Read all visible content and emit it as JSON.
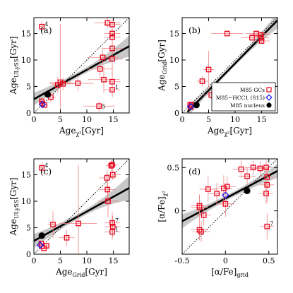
{
  "chart_data": [
    {
      "panel": "(a)",
      "type": "scatter",
      "xlabel": "Age",
      "xlabel_sub": "χ²",
      "xlabel_unit": "[Gyr]",
      "ylabel": "Age",
      "ylabel_sub": "ULySS",
      "ylabel_unit": "[Gyr]",
      "xlim": [
        0,
        18
      ],
      "ylim": [
        0,
        18
      ],
      "xticks": [
        0,
        5,
        10,
        15
      ],
      "yticks": [
        0,
        5,
        10,
        15
      ],
      "one_to_one_line": true,
      "fit": {
        "x": [
          0,
          18
        ],
        "y": [
          2.6,
          12.6
        ],
        "band_halfwidth_at_ends": [
          1.2,
          2.0
        ],
        "band_halfwidth_center": 0.5
      },
      "series": [
        {
          "name": "M85 GCs",
          "marker": "square",
          "color": "#e8001b",
          "points": [
            {
              "x": 1.5,
              "y": 16.3,
              "xerr": 0.5,
              "yerr": 1.0,
              "label": "4"
            },
            {
              "x": 1.5,
              "y": 2.2,
              "xerr": 0.4,
              "yerr": 0.6
            },
            {
              "x": 1.6,
              "y": 1.8,
              "xerr": 0.5,
              "yerr": 0.6
            },
            {
              "x": 2.0,
              "y": 1.5,
              "xerr": 0.7,
              "yerr": 0.5
            },
            {
              "x": 3.2,
              "y": 3.0,
              "xerr": 1.0,
              "yerr": 1.0
            },
            {
              "x": 4.5,
              "y": 5.3,
              "xerr": 1.0,
              "yerr": 1.5
            },
            {
              "x": 5.0,
              "y": 5.8,
              "xerr": 2.0,
              "yerr": 11.0
            },
            {
              "x": 5.5,
              "y": 5.5,
              "xerr": 2.5,
              "yerr": 1.2
            },
            {
              "x": 8.3,
              "y": 5.6,
              "xerr": 3.0,
              "yerr": 1.5
            },
            {
              "x": 12.5,
              "y": 8.3,
              "xerr": 2.5,
              "yerr": 2.0
            },
            {
              "x": 13.0,
              "y": 10.5,
              "xerr": 3.0,
              "yerr": 1.5
            },
            {
              "x": 13.2,
              "y": 6.3,
              "xerr": 3.0,
              "yerr": 2.5
            },
            {
              "x": 13.9,
              "y": 17.0,
              "xerr": 2.5,
              "yerr": 1.0
            },
            {
              "x": 14.8,
              "y": 16.7,
              "xerr": 1.5,
              "yerr": 1.0
            },
            {
              "x": 14.8,
              "y": 15.0,
              "xerr": 1.5,
              "yerr": 1.0
            },
            {
              "x": 14.8,
              "y": 14.3,
              "xerr": 1.5,
              "yerr": 1.5
            },
            {
              "x": 14.8,
              "y": 12.2,
              "xerr": 2.0,
              "yerr": 1.5
            },
            {
              "x": 14.8,
              "y": 10.2,
              "xerr": 2.0,
              "yerr": 3.0
            },
            {
              "x": 14.8,
              "y": 5.9,
              "xerr": 1.5,
              "yerr": 2.0
            },
            {
              "x": 14.8,
              "y": 4.4,
              "xerr": 1.5,
              "yerr": 1.5,
              "label": "1"
            },
            {
              "x": 12.3,
              "y": 1.3,
              "xerr": 3.0,
              "yerr": 1.0,
              "label": "5"
            }
          ]
        },
        {
          "name": "M85-HCC1 (S15)",
          "marker": "diamond",
          "color": "#2222ee",
          "points": [
            {
              "x": 1.6,
              "y": 1.6,
              "xerr": 0.2,
              "yerr": 0.2
            }
          ]
        },
        {
          "name": "M85 nucleus",
          "marker": "circle",
          "color": "#000000",
          "points": [
            {
              "x": 2.6,
              "y": 3.5,
              "xerr": 0,
              "yerr": 0
            }
          ]
        }
      ]
    },
    {
      "panel": "(b)",
      "type": "scatter",
      "xlabel": "Age",
      "xlabel_sub": "χ²",
      "xlabel_unit": "[Gyr]",
      "ylabel": "Age",
      "ylabel_sub": "Grid",
      "ylabel_unit": "[Gyr]",
      "xlim": [
        0,
        18
      ],
      "ylim": [
        0,
        18
      ],
      "xticks": [
        0,
        5,
        10,
        15
      ],
      "yticks": [
        0,
        5,
        10,
        15
      ],
      "one_to_one_line": true,
      "legend": {
        "placement": "bottom-right",
        "entries": [
          "M85 GCs",
          "M85−HCC1 (S15)",
          "M85 nucleus"
        ]
      },
      "fit": {
        "x": [
          1,
          18
        ],
        "y": [
          0.2,
          17.5
        ],
        "band_halfwidth_at_ends": [
          1.0,
          1.5
        ],
        "band_halfwidth_center": 0.4
      },
      "series": [
        {
          "name": "M85 GCs",
          "marker": "square",
          "color": "#e8001b",
          "points": [
            {
              "x": 1.5,
              "y": 1.5,
              "xerr": 0.4,
              "yerr": 0.4
            },
            {
              "x": 1.6,
              "y": 1.1,
              "xerr": 0.4,
              "yerr": 0.4
            },
            {
              "x": 1.8,
              "y": 1.6,
              "xerr": 0.4,
              "yerr": 0.5
            },
            {
              "x": 3.8,
              "y": 6.0,
              "xerr": 1.0,
              "yerr": 1.0
            },
            {
              "x": 5.0,
              "y": 8.2,
              "xerr": 1.0,
              "yerr": 3.5
            },
            {
              "x": 5.5,
              "y": 3.4,
              "xerr": 1.5,
              "yerr": 0.8
            },
            {
              "x": 8.5,
              "y": 15.0,
              "xerr": 3.0,
              "yerr": 0.5
            },
            {
              "x": 13.2,
              "y": 14.2,
              "xerr": 2.0,
              "yerr": 0.5
            },
            {
              "x": 14.0,
              "y": 15.0,
              "xerr": 2.0,
              "yerr": 0.5
            },
            {
              "x": 14.8,
              "y": 14.8,
              "xerr": 2.0,
              "yerr": 0.5
            },
            {
              "x": 14.9,
              "y": 14.2,
              "xerr": 1.5,
              "yerr": 0.5
            },
            {
              "x": 15.0,
              "y": 13.6,
              "xerr": 1.5,
              "yerr": 0.5
            }
          ]
        },
        {
          "name": "M85−HCC1 (S15)",
          "marker": "diamond",
          "color": "#2222ee",
          "points": [
            {
              "x": 1.6,
              "y": 1.2,
              "xerr": 0.2,
              "yerr": 0.2
            }
          ]
        },
        {
          "name": "M85 nucleus",
          "marker": "circle",
          "color": "#000000",
          "points": [
            {
              "x": 2.7,
              "y": 1.5,
              "xerr": 0,
              "yerr": 0
            }
          ]
        }
      ]
    },
    {
      "panel": "(c)",
      "type": "scatter",
      "xlabel": "Age",
      "xlabel_sub": "Grid",
      "xlabel_unit": "[Gyr]",
      "ylabel": "Age",
      "ylabel_sub": "ULySS",
      "ylabel_unit": "[Gyr]",
      "xlim": [
        0,
        18
      ],
      "ylim": [
        0,
        18
      ],
      "xticks": [
        0,
        5,
        10,
        15
      ],
      "yticks": [
        0,
        5,
        10,
        15
      ],
      "one_to_one_line": true,
      "fit": {
        "x": [
          0,
          18
        ],
        "y": [
          2.5,
          12.5
        ],
        "band_halfwidth_at_ends": [
          1.3,
          2.3
        ],
        "band_halfwidth_center": 0.5
      },
      "series": [
        {
          "name": "M85 GCs",
          "marker": "square",
          "color": "#e8001b",
          "points": [
            {
              "x": 1.5,
              "y": 16.3,
              "xerr": 0.5,
              "yerr": 1.0,
              "label": "4"
            },
            {
              "x": 1.4,
              "y": 2.0,
              "xerr": 0.4,
              "yerr": 0.6
            },
            {
              "x": 1.5,
              "y": 1.5,
              "xerr": 0.4,
              "yerr": 0.5
            },
            {
              "x": 1.9,
              "y": 1.1,
              "xerr": 0.5,
              "yerr": 0.5
            },
            {
              "x": 2.4,
              "y": 1.6,
              "xerr": 0.6,
              "yerr": 0.6
            },
            {
              "x": 3.6,
              "y": 5.6,
              "xerr": 1.0,
              "yerr": 2.5
            },
            {
              "x": 6.2,
              "y": 3.1,
              "xerr": 1.5,
              "yerr": 1.5
            },
            {
              "x": 8.4,
              "y": 5.8,
              "xerr": 3.5,
              "yerr": 11.0
            },
            {
              "x": 13.8,
              "y": 14.4,
              "xerr": 1.5,
              "yerr": 1.5
            },
            {
              "x": 13.9,
              "y": 12.2,
              "xerr": 1.5,
              "yerr": 2.0
            },
            {
              "x": 14.0,
              "y": 10.0,
              "xerr": 2.0,
              "yerr": 3.0
            },
            {
              "x": 14.6,
              "y": 16.7,
              "xerr": 1.0,
              "yerr": 1.0
            },
            {
              "x": 14.8,
              "y": 16.9,
              "xerr": 1.0,
              "yerr": 1.0
            },
            {
              "x": 14.9,
              "y": 15.0,
              "xerr": 1.5,
              "yerr": 1.0
            },
            {
              "x": 14.8,
              "y": 5.9,
              "xerr": 1.5,
              "yerr": 2.0,
              "label": "7"
            },
            {
              "x": 14.9,
              "y": 5.2,
              "xerr": 1.5,
              "yerr": 2.0
            },
            {
              "x": 14.8,
              "y": 4.2,
              "xerr": 1.5,
              "yerr": 1.5,
              "label": "1"
            }
          ]
        },
        {
          "name": "M85-HCC1 (S15)",
          "marker": "diamond",
          "color": "#2222ee",
          "points": [
            {
              "x": 1.2,
              "y": 1.7,
              "xerr": 0.2,
              "yerr": 0.2
            }
          ]
        },
        {
          "name": "M85 nucleus",
          "marker": "circle",
          "color": "#000000",
          "points": [
            {
              "x": 1.5,
              "y": 3.5,
              "xerr": 0,
              "yerr": 0
            }
          ]
        }
      ]
    },
    {
      "panel": "(d)",
      "type": "scatter",
      "xlabel": "[α/Fe]",
      "xlabel_sub": "grid",
      "xlabel_unit": "",
      "ylabel": "[α/Fe]",
      "ylabel_sub": "χ²",
      "ylabel_unit": "",
      "xlim": [
        -0.5,
        0.6
      ],
      "ylim": [
        -0.5,
        0.6
      ],
      "xticks": [
        -0.5,
        0.0,
        0.5
      ],
      "yticks": [
        0.0,
        0.5
      ],
      "one_to_one_line": true,
      "fit": {
        "x": [
          -0.5,
          0.6
        ],
        "y": [
          -0.12,
          0.46
        ],
        "band_halfwidth_at_ends": [
          0.08,
          0.08
        ],
        "band_halfwidth_center": 0.03
      },
      "series": [
        {
          "name": "M85 GCs",
          "marker": "square",
          "color": "#e8001b",
          "points": [
            {
              "x": -0.3,
              "y": 0.06,
              "xerr": 0.1,
              "yerr": 0.12
            },
            {
              "x": -0.3,
              "y": 0.04,
              "xerr": 0.1,
              "yerr": 0.15
            },
            {
              "x": -0.3,
              "y": -0.22,
              "xerr": 0.1,
              "yerr": 0.12
            },
            {
              "x": -0.28,
              "y": -0.24,
              "xerr": 0.1,
              "yerr": 0.12
            },
            {
              "x": -0.25,
              "y": -0.05,
              "xerr": 0.08,
              "yerr": 0.12
            },
            {
              "x": -0.2,
              "y": 0.25,
              "xerr": 0.1,
              "yerr": 0.15
            },
            {
              "x": -0.1,
              "y": 0.2,
              "xerr": 0.1,
              "yerr": 0.12
            },
            {
              "x": -0.02,
              "y": 0.26,
              "xerr": 0.1,
              "yerr": 0.15
            },
            {
              "x": 0.0,
              "y": 0.08,
              "xerr": 0.1,
              "yerr": 0.15
            },
            {
              "x": 0.02,
              "y": 0.28,
              "xerr": 0.1,
              "yerr": 0.12
            },
            {
              "x": 0.18,
              "y": 0.48,
              "xerr": 0.1,
              "yerr": 0.1
            },
            {
              "x": 0.25,
              "y": 0.4,
              "xerr": 0.1,
              "yerr": 0.1
            },
            {
              "x": 0.32,
              "y": 0.5,
              "xerr": 0.1,
              "yerr": 0.08
            },
            {
              "x": 0.4,
              "y": 0.49,
              "xerr": 0.1,
              "yerr": 0.08
            },
            {
              "x": 0.47,
              "y": 0.5,
              "xerr": 0.08,
              "yerr": 0.08
            },
            {
              "x": 0.48,
              "y": 0.39,
              "xerr": 0.08,
              "yerr": 0.1
            },
            {
              "x": 0.48,
              "y": 0.3,
              "xerr": 0.08,
              "yerr": 0.2
            },
            {
              "x": 0.47,
              "y": 0.2,
              "xerr": 0.08,
              "yerr": 0.12
            },
            {
              "x": 0.48,
              "y": -0.18,
              "xerr": 0.08,
              "yerr": 0.15,
              "label": "7"
            }
          ]
        },
        {
          "name": "M85-HCC1 (S15)",
          "marker": "diamond",
          "color": "#2222ee",
          "points": [
            {
              "x": 0.0,
              "y": 0.18,
              "xerr": 0.03,
              "yerr": 0.03
            }
          ]
        },
        {
          "name": "M85 nucleus",
          "marker": "circle",
          "color": "#000000",
          "points": [
            {
              "x": 0.25,
              "y": 0.23,
              "xerr": 0,
              "yerr": 0
            }
          ]
        }
      ]
    }
  ],
  "colors": {
    "gc": "#e8001b",
    "gc_err": "#f08080",
    "hcc1": "#2222ee",
    "nucleus": "#000000",
    "band": "#c8c8c8"
  }
}
